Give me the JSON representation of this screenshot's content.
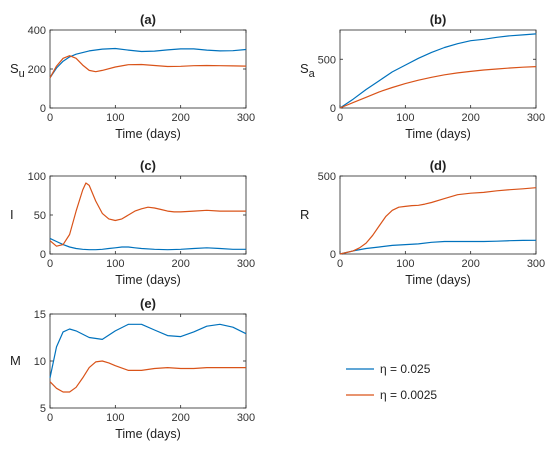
{
  "legend": [
    {
      "label": "η = 0.025",
      "color": "#0072BD"
    },
    {
      "label": "η = 0.0025",
      "color": "#D95319"
    }
  ],
  "chart_data": [
    {
      "type": "line",
      "title": "(a)",
      "ylabel": "S",
      "ylabel_sub": "u",
      "xlabel": "Time (days)",
      "xlim": [
        0,
        300
      ],
      "ylim": [
        0,
        400
      ],
      "xticks": [
        0,
        100,
        200,
        300
      ],
      "yticks": [
        0,
        200,
        400
      ],
      "series": [
        {
          "x": [
            0,
            10,
            20,
            30,
            40,
            60,
            80,
            100,
            120,
            140,
            160,
            180,
            200,
            220,
            240,
            260,
            280,
            300
          ],
          "y": [
            155,
            205,
            240,
            262,
            276,
            293,
            302,
            305,
            297,
            290,
            292,
            298,
            303,
            303,
            297,
            293,
            294,
            300
          ]
        },
        {
          "x": [
            0,
            10,
            20,
            30,
            40,
            50,
            60,
            70,
            80,
            100,
            120,
            140,
            160,
            180,
            200,
            220,
            240,
            260,
            280,
            300
          ],
          "y": [
            155,
            215,
            255,
            268,
            255,
            220,
            193,
            186,
            193,
            210,
            222,
            223,
            218,
            213,
            214,
            217,
            218,
            217,
            216,
            215
          ]
        }
      ]
    },
    {
      "type": "line",
      "title": "(b)",
      "ylabel": "S",
      "ylabel_sub": "a",
      "xlabel": "Time (days)",
      "xlim": [
        0,
        300
      ],
      "ylim": [
        0,
        800
      ],
      "xticks": [
        0,
        100,
        200,
        300
      ],
      "yticks": [
        0,
        500
      ],
      "series": [
        {
          "x": [
            0,
            20,
            40,
            60,
            80,
            100,
            120,
            140,
            160,
            180,
            200,
            220,
            240,
            260,
            280,
            300
          ],
          "y": [
            0,
            90,
            190,
            280,
            370,
            440,
            510,
            570,
            620,
            660,
            690,
            705,
            725,
            740,
            750,
            760
          ]
        },
        {
          "x": [
            0,
            20,
            40,
            60,
            80,
            100,
            120,
            140,
            160,
            180,
            200,
            220,
            240,
            260,
            280,
            300
          ],
          "y": [
            0,
            55,
            110,
            165,
            210,
            250,
            285,
            315,
            340,
            360,
            375,
            390,
            400,
            410,
            418,
            425
          ]
        }
      ]
    },
    {
      "type": "line",
      "title": "(c)",
      "ylabel": "I",
      "xlabel": "Time (days)",
      "xlim": [
        0,
        300
      ],
      "ylim": [
        0,
        100
      ],
      "xticks": [
        0,
        100,
        200,
        300
      ],
      "yticks": [
        0,
        50,
        100
      ],
      "series": [
        {
          "x": [
            0,
            10,
            20,
            30,
            40,
            50,
            60,
            70,
            80,
            90,
            100,
            110,
            120,
            130,
            140,
            160,
            180,
            200,
            220,
            240,
            260,
            280,
            300
          ],
          "y": [
            20,
            16,
            12,
            9,
            7,
            6,
            5.5,
            5.5,
            6,
            7,
            8,
            9,
            9,
            8,
            7,
            6,
            5.5,
            6,
            7,
            8,
            7,
            6,
            6
          ]
        },
        {
          "x": [
            0,
            10,
            20,
            30,
            40,
            50,
            55,
            60,
            70,
            80,
            90,
            100,
            110,
            120,
            130,
            140,
            150,
            160,
            170,
            180,
            190,
            200,
            220,
            240,
            260,
            280,
            300
          ],
          "y": [
            17,
            10,
            12,
            25,
            55,
            82,
            91,
            88,
            68,
            52,
            45,
            43,
            45,
            50,
            55,
            58,
            60,
            59,
            57,
            55,
            54,
            54,
            55,
            56,
            55,
            55,
            55
          ]
        }
      ]
    },
    {
      "type": "line",
      "title": "(d)",
      "ylabel": "R",
      "xlabel": "Time (days)",
      "xlim": [
        0,
        300
      ],
      "ylim": [
        0,
        500
      ],
      "xticks": [
        0,
        100,
        200,
        300
      ],
      "yticks": [
        0,
        500
      ],
      "series": [
        {
          "x": [
            0,
            20,
            40,
            60,
            80,
            100,
            120,
            140,
            160,
            180,
            200,
            220,
            240,
            260,
            280,
            300
          ],
          "y": [
            0,
            20,
            35,
            45,
            55,
            60,
            65,
            75,
            80,
            80,
            80,
            80,
            82,
            85,
            87,
            88
          ]
        },
        {
          "x": [
            0,
            20,
            30,
            40,
            50,
            60,
            70,
            80,
            90,
            100,
            110,
            120,
            130,
            140,
            160,
            180,
            200,
            220,
            240,
            260,
            280,
            300
          ],
          "y": [
            0,
            20,
            40,
            70,
            120,
            180,
            240,
            280,
            300,
            305,
            310,
            312,
            320,
            330,
            355,
            380,
            390,
            395,
            405,
            412,
            418,
            425
          ]
        }
      ]
    },
    {
      "type": "line",
      "title": "(e)",
      "ylabel": "M",
      "xlabel": "Time (days)",
      "xlim": [
        0,
        300
      ],
      "ylim": [
        5,
        15
      ],
      "xticks": [
        0,
        100,
        200,
        300
      ],
      "yticks": [
        5,
        10,
        15
      ],
      "series": [
        {
          "x": [
            0,
            10,
            20,
            30,
            40,
            60,
            80,
            100,
            120,
            140,
            160,
            180,
            200,
            220,
            240,
            260,
            280,
            300
          ],
          "y": [
            8.2,
            11.5,
            13.1,
            13.4,
            13.2,
            12.5,
            12.3,
            13.2,
            13.9,
            13.9,
            13.3,
            12.7,
            12.6,
            13.1,
            13.7,
            13.9,
            13.6,
            12.9
          ]
        },
        {
          "x": [
            0,
            10,
            20,
            30,
            40,
            50,
            60,
            70,
            80,
            90,
            100,
            120,
            140,
            160,
            180,
            200,
            220,
            240,
            260,
            280,
            300
          ],
          "y": [
            7.8,
            7.1,
            6.7,
            6.7,
            7.2,
            8.2,
            9.3,
            9.9,
            10.0,
            9.8,
            9.5,
            9.0,
            9.0,
            9.2,
            9.3,
            9.2,
            9.2,
            9.3,
            9.3,
            9.3,
            9.3
          ]
        }
      ]
    }
  ]
}
